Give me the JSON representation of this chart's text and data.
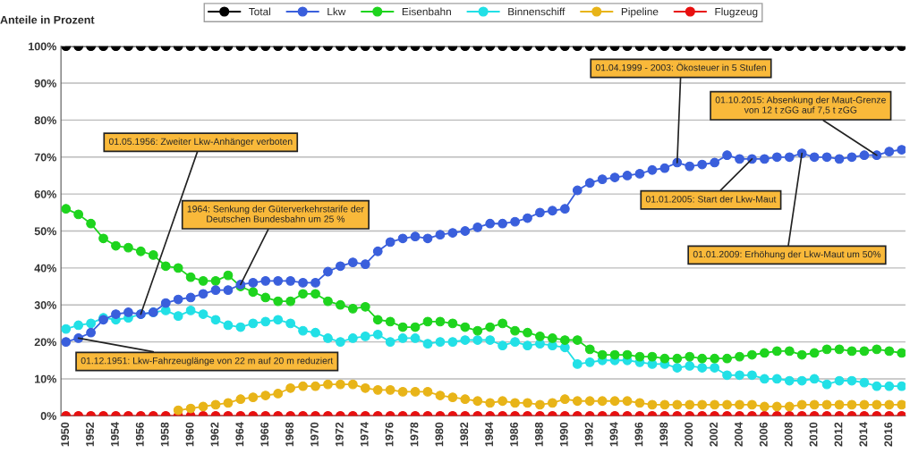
{
  "chart_data": {
    "type": "line",
    "ylabel": "Anteile in Prozent",
    "x": [
      1950,
      1951,
      1952,
      1953,
      1954,
      1955,
      1956,
      1957,
      1958,
      1959,
      1960,
      1961,
      1962,
      1963,
      1964,
      1965,
      1966,
      1967,
      1968,
      1969,
      1970,
      1971,
      1972,
      1973,
      1974,
      1975,
      1976,
      1977,
      1978,
      1979,
      1980,
      1981,
      1982,
      1983,
      1984,
      1985,
      1986,
      1987,
      1988,
      1989,
      1990,
      1991,
      1992,
      1993,
      1994,
      1995,
      1996,
      1997,
      1998,
      1999,
      2000,
      2001,
      2002,
      2003,
      2004,
      2005,
      2006,
      2007,
      2008,
      2009,
      2010,
      2011,
      2012,
      2013,
      2014,
      2015,
      2016,
      2017
    ],
    "series": [
      {
        "name": "Total",
        "color": "#000000",
        "values": [
          100,
          100,
          100,
          100,
          100,
          100,
          100,
          100,
          100,
          100,
          100,
          100,
          100,
          100,
          100,
          100,
          100,
          100,
          100,
          100,
          100,
          100,
          100,
          100,
          100,
          100,
          100,
          100,
          100,
          100,
          100,
          100,
          100,
          100,
          100,
          100,
          100,
          100,
          100,
          100,
          100,
          100,
          100,
          100,
          100,
          100,
          100,
          100,
          100,
          100,
          100,
          100,
          100,
          100,
          100,
          100,
          100,
          100,
          100,
          100,
          100,
          100,
          100,
          100,
          100,
          100,
          100,
          100
        ]
      },
      {
        "name": "Lkw",
        "color": "#3a5fdc",
        "values": [
          20,
          21,
          22.5,
          26,
          27.5,
          28,
          27.5,
          28,
          30.5,
          31.5,
          32,
          33,
          34,
          34,
          35.5,
          36,
          36.5,
          36.5,
          36.5,
          36,
          36,
          39,
          40.5,
          41.5,
          41,
          44.5,
          47,
          48,
          48.5,
          48,
          49,
          49.5,
          50,
          51,
          52,
          52,
          52.5,
          53.5,
          55,
          55.5,
          56,
          61,
          63,
          64,
          64.5,
          65,
          65.5,
          66.5,
          67,
          68.5,
          67.5,
          68,
          68.5,
          70.5,
          69.5,
          69.5,
          69.5,
          70,
          70,
          71,
          70,
          70,
          69.5,
          70,
          70.5,
          70.5,
          71.5,
          72
        ]
      },
      {
        "name": "Eisenbahn",
        "color": "#1ed41e",
        "values": [
          56,
          54.5,
          52,
          48,
          46,
          45.5,
          44.5,
          43.5,
          40.5,
          40,
          37.5,
          36.5,
          36.5,
          38,
          35,
          33.5,
          32,
          31,
          31,
          33,
          33,
          31,
          30,
          29,
          29.5,
          26,
          25.5,
          24,
          24,
          25.5,
          25.5,
          25,
          24,
          23,
          24,
          25,
          23,
          22.5,
          21.5,
          21,
          20.5,
          20.5,
          18,
          16.5,
          16.5,
          16.5,
          16,
          16,
          15.5,
          15.5,
          16,
          15.5,
          15.5,
          15.5,
          16,
          16.5,
          17,
          17.5,
          17.5,
          16.5,
          17,
          18,
          18,
          17.5,
          17.5,
          18,
          17.5,
          17
        ]
      },
      {
        "name": "Binnenschiff",
        "color": "#22e0e6",
        "values": [
          23.5,
          24.5,
          25,
          26.5,
          26,
          26.5,
          27.5,
          28,
          28.5,
          27,
          28.5,
          27.5,
          26,
          24.5,
          24,
          25,
          25.5,
          26,
          25,
          23,
          22.5,
          21,
          20,
          21,
          21.5,
          22,
          20,
          21,
          21,
          19.5,
          20,
          20,
          20.5,
          20.5,
          20.5,
          19,
          20,
          19,
          19.5,
          19,
          18.5,
          14,
          14.5,
          15,
          15,
          15,
          14.5,
          14,
          14,
          13,
          13.5,
          13,
          13,
          11,
          11,
          11,
          10,
          10,
          9.5,
          9.5,
          10,
          8.5,
          9.5,
          9.5,
          9,
          8,
          8,
          8
        ]
      },
      {
        "name": "Pipeline",
        "color": "#e8b418",
        "values": [
          null,
          null,
          null,
          null,
          null,
          null,
          null,
          null,
          null,
          1.5,
          2,
          2.5,
          3,
          3.5,
          4.5,
          5,
          5.5,
          6,
          7.5,
          8,
          8,
          8.5,
          8.5,
          8.5,
          7.5,
          7,
          7,
          6.5,
          6.5,
          6.5,
          5.5,
          5,
          4.5,
          4,
          3.5,
          4,
          3.5,
          3.5,
          3,
          3.5,
          4.5,
          4,
          4,
          4,
          4,
          4,
          3.5,
          3,
          3,
          3,
          3,
          3,
          3,
          3,
          3,
          3,
          2.5,
          2.5,
          2.5,
          3,
          3,
          3,
          3,
          3,
          3,
          3,
          3,
          3
        ]
      },
      {
        "name": "Flugzeug",
        "color": "#e81010",
        "values": [
          0,
          0,
          0,
          0,
          0,
          0,
          0,
          0,
          0,
          0,
          0,
          0,
          0,
          0,
          0,
          0,
          0,
          0,
          0,
          0,
          0,
          0,
          0,
          0,
          0,
          0,
          0,
          0,
          0,
          0,
          0,
          0,
          0,
          0,
          0,
          0,
          0,
          0,
          0,
          0,
          0,
          0,
          0,
          0,
          0,
          0,
          0,
          0,
          0,
          0,
          0,
          0,
          0,
          0,
          0,
          0,
          0,
          0,
          0,
          0,
          0,
          0,
          0,
          0,
          0,
          0,
          0,
          0
        ]
      }
    ],
    "xlim": [
      1949.6,
      2017.3
    ],
    "xticks": [
      1950,
      1952,
      1954,
      1956,
      1958,
      1960,
      1962,
      1964,
      1966,
      1968,
      1970,
      1972,
      1974,
      1976,
      1978,
      1980,
      1982,
      1984,
      1986,
      1988,
      1990,
      1992,
      1994,
      1996,
      1998,
      2000,
      2002,
      2004,
      2006,
      2008,
      2010,
      2012,
      2014,
      2016
    ],
    "ylim": [
      0,
      100
    ],
    "yticks": [
      {
        "value": 0,
        "label": "0%"
      },
      {
        "value": 10,
        "label": "10%"
      },
      {
        "value": 20,
        "label": "20%"
      },
      {
        "value": 30,
        "label": "30%"
      },
      {
        "value": 40,
        "label": "40%"
      },
      {
        "value": 50,
        "label": "50%"
      },
      {
        "value": 60,
        "label": "60%"
      },
      {
        "value": 70,
        "label": "70%"
      },
      {
        "value": 80,
        "label": "80%"
      },
      {
        "value": 90,
        "label": "90%"
      },
      {
        "value": 100,
        "label": "100%"
      }
    ],
    "annotations": [
      {
        "text": "01.05.1956: Zweiter Lkw-Anhänger verboten",
        "x": 1956,
        "y": 27.5
      },
      {
        "text": "1964: Senkung der Güterverkehrstarife der\nDeutschen Bundesbahn um 25 %",
        "x": 1964,
        "y": 35.5
      },
      {
        "text": "01.12.1951: Lkw-Fahrzeuglänge von 22 m auf 20 m reduziert",
        "x": 1951,
        "y": 21
      },
      {
        "text": "01.04.1999 - 2003: Ökosteuer in 5 Stufen",
        "x": 1999,
        "y": 68.5
      },
      {
        "text": "01.01.2005: Start der Lkw-Maut",
        "x": 2005,
        "y": 69.5
      },
      {
        "text": "01.01.2009: Erhöhung der Lkw-Maut um 50%",
        "x": 2009,
        "y": 71
      },
      {
        "text": "01.10.2015: Absenkung der Maut-Grenze\nvon 12 t zGG auf 7,5 t zGG",
        "x": 2015,
        "y": 70.5
      }
    ],
    "grid": "y",
    "legend": "top",
    "marker": "circle",
    "line_style": "solid"
  }
}
